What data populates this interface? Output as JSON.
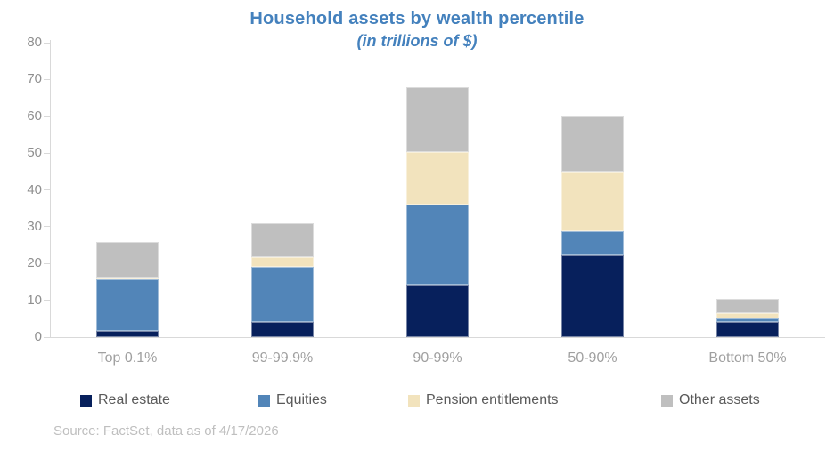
{
  "chart_data": {
    "type": "bar",
    "stacked": true,
    "title": "Household assets by wealth percentile",
    "subtitle": "(in trillions of $)",
    "categories": [
      "Top 0.1%",
      "99-99.9%",
      "90-99%",
      "50-90%",
      "Bottom 50%"
    ],
    "series": [
      {
        "name": "Real estate",
        "color": "#07205c",
        "values": [
          1.8,
          4.2,
          14.2,
          22.2,
          4.0
        ]
      },
      {
        "name": "Equities",
        "color": "#5285b8",
        "values": [
          14.0,
          15.0,
          21.8,
          6.5,
          1.0
        ]
      },
      {
        "name": "Pension entitlements",
        "color": "#f2e3bd",
        "values": [
          0.5,
          2.6,
          14.2,
          16.2,
          1.5
        ]
      },
      {
        "name": "Other assets",
        "color": "#bfbfbf",
        "values": [
          9.5,
          9.2,
          17.8,
          15.3,
          3.8
        ]
      }
    ],
    "ylim": [
      0,
      80
    ],
    "yticks": [
      0,
      10,
      20,
      30,
      40,
      50,
      60,
      70,
      80
    ],
    "grid": false,
    "legend_position": "bottom"
  },
  "colors": {
    "title_text": "#4481bd",
    "axis_tick_text": "#8f8f8f",
    "category_text": "#a0a0a0",
    "legend_text": "#595959",
    "source_text": "#bfbfbf",
    "axis_line": "#d9d9d9"
  },
  "source": "Source: FactSet, data as of 4/17/2026"
}
